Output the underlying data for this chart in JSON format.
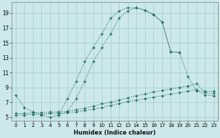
{
  "xlabel": "Humidex (Indice chaleur)",
  "background_color": "#cce8e8",
  "grid_color": "#aacfcf",
  "line_color": "#1a6b5a",
  "xlim": [
    -0.5,
    23.5
  ],
  "ylim": [
    4.5,
    20.5
  ],
  "xticks": [
    0,
    1,
    2,
    3,
    4,
    5,
    6,
    7,
    8,
    9,
    10,
    11,
    12,
    13,
    14,
    15,
    16,
    17,
    18,
    19,
    20,
    21,
    22,
    23
  ],
  "yticks": [
    5,
    7,
    9,
    11,
    13,
    15,
    17,
    19
  ],
  "line1_x": [
    0,
    1,
    2,
    3,
    4,
    5,
    6,
    7,
    8,
    9,
    10,
    11,
    12,
    13,
    14,
    15,
    16,
    17,
    18,
    19
  ],
  "line1_y": [
    8.0,
    6.3,
    5.7,
    5.3,
    5.0,
    5.3,
    7.5,
    9.8,
    12.5,
    14.4,
    16.2,
    18.3,
    19.3,
    19.7,
    19.7,
    19.4,
    18.8,
    17.8,
    13.8,
    13.7
  ],
  "line2_x": [
    5,
    6,
    7,
    8,
    9,
    10,
    11,
    12,
    13,
    14,
    15,
    16,
    17,
    18,
    19,
    20,
    21,
    22,
    23
  ],
  "line2_y": [
    5.3,
    5.7,
    7.5,
    9.8,
    12.5,
    14.4,
    16.2,
    18.3,
    19.3,
    19.7,
    19.4,
    18.8,
    17.8,
    13.8,
    13.7,
    10.5,
    8.5,
    8.5,
    8.5
  ],
  "line3_x": [
    0,
    1,
    2,
    3,
    4,
    5,
    6,
    7,
    8,
    9,
    10,
    11,
    12,
    13,
    14,
    15,
    16,
    17,
    18,
    19,
    20,
    21,
    22,
    23
  ],
  "line3_y": [
    5.5,
    5.5,
    5.6,
    5.6,
    5.7,
    5.7,
    5.8,
    6.0,
    6.2,
    6.5,
    6.8,
    7.0,
    7.3,
    7.6,
    7.9,
    8.1,
    8.4,
    8.6,
    8.8,
    9.0,
    9.2,
    9.5,
    8.3,
    8.2
  ],
  "line4_x": [
    0,
    1,
    2,
    3,
    4,
    5,
    6,
    7,
    8,
    9,
    10,
    11,
    12,
    13,
    14,
    15,
    16,
    17,
    18,
    19,
    20,
    21,
    22,
    23
  ],
  "line4_y": [
    5.3,
    5.3,
    5.4,
    5.4,
    5.5,
    5.5,
    5.6,
    5.7,
    5.9,
    6.1,
    6.3,
    6.6,
    6.8,
    7.1,
    7.3,
    7.5,
    7.7,
    7.9,
    8.1,
    8.3,
    8.5,
    8.7,
    8.0,
    7.9
  ]
}
